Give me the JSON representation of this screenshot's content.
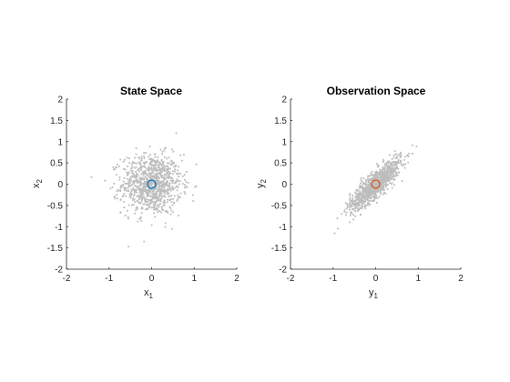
{
  "chart_data": [
    {
      "type": "scatter",
      "title": "State Space",
      "xlabel": "x",
      "xlabel_sub": "1",
      "ylabel": "x",
      "ylabel_sub": "2",
      "xlim": [
        -2,
        2
      ],
      "ylim": [
        -2,
        2
      ],
      "xticks": [
        "-2",
        "-1",
        "0",
        "1",
        "2"
      ],
      "yticks": [
        "-2",
        "-1.5",
        "-1",
        "-0.5",
        "0",
        "0.5",
        "1",
        "1.5",
        "2"
      ],
      "grid": false,
      "cloud": {
        "n": 1000,
        "mean": [
          0,
          0
        ],
        "sx": 0.35,
        "sy": 0.35,
        "rho": 0.0,
        "color": "#bdbdbd"
      },
      "marker": {
        "x": 0,
        "y": 0,
        "shape": "circle",
        "color": "#0072BD"
      }
    },
    {
      "type": "scatter",
      "title": "Observation Space",
      "xlabel": "y",
      "xlabel_sub": "1",
      "ylabel": "y",
      "ylabel_sub": "2",
      "xlim": [
        -2,
        2
      ],
      "ylim": [
        -2,
        2
      ],
      "xticks": [
        "-2",
        "-1",
        "0",
        "1",
        "2"
      ],
      "yticks": [
        "-2",
        "-1.5",
        "-1",
        "-0.5",
        "0",
        "0.5",
        "1",
        "1.5",
        "2"
      ],
      "grid": false,
      "cloud": {
        "n": 1000,
        "mean": [
          0,
          0
        ],
        "sx": 0.3,
        "sy": 0.3,
        "rho": 0.85,
        "color": "#bdbdbd"
      },
      "marker": {
        "x": 0,
        "y": 0,
        "shape": "circle",
        "color": "#D95319"
      }
    }
  ]
}
